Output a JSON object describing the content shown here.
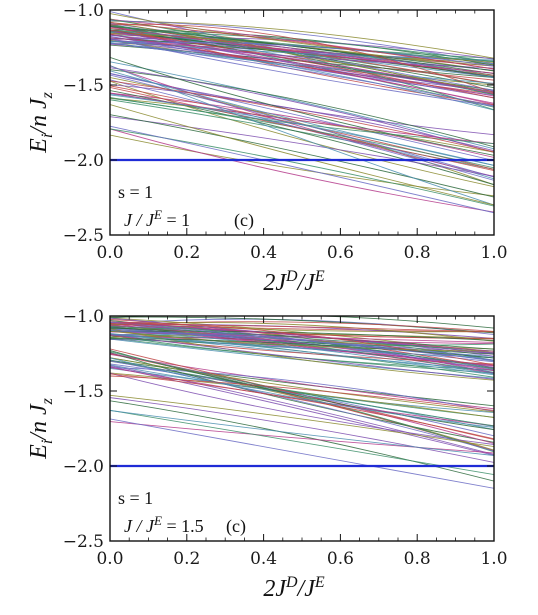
{
  "chart_data": [
    {
      "type": "line",
      "xlim": [
        0.0,
        1.0
      ],
      "ylim": [
        -2.5,
        -1.0
      ],
      "x_ticks": [
        "0.0",
        "0.2",
        "0.4",
        "0.6",
        "0.8",
        "1.0"
      ],
      "y_ticks": [
        "-1.0",
        "-1.5",
        "-2.0",
        "-2.5"
      ],
      "xlabel": {
        "base": "2J",
        "sup1": "D",
        "mid": "/J",
        "sup2": "E"
      },
      "ylabel": {
        "base": "E",
        "sub1": "i",
        "mid": "/n J",
        "sub2": "z"
      },
      "annotation": {
        "spin": "s = 1",
        "ratio_pre": "J / J",
        "ratio_sup": "E",
        "ratio_post": " = 1",
        "panel": "(c)"
      },
      "highlight_series": {
        "value": -2.0,
        "color": "#1f2bd6"
      },
      "band_series": [
        {
          "y0": -1.0,
          "y1": -1.39,
          "count": 60
        },
        {
          "y0": -1.3,
          "y1": -1.9,
          "count": 25
        },
        {
          "y0": -1.63,
          "y1": -2.1,
          "count": 6
        }
      ],
      "extra_series": [
        {
          "y0": -1.1,
          "y_mid": -1.05,
          "y1": -1.55
        },
        {
          "y0": -1.37,
          "y1": -2.3
        },
        {
          "y0": -1.63,
          "y1": -2.3
        }
      ],
      "palette": [
        "#b53c8c",
        "#3d8f6a",
        "#6b6cc4",
        "#c04848",
        "#4b8fb0",
        "#8a8a2e",
        "#7e4fb0",
        "#2f6b3e"
      ]
    },
    {
      "type": "line",
      "xlim": [
        0.0,
        1.0
      ],
      "ylim": [
        -2.5,
        -1.0
      ],
      "x_ticks": [
        "0.0",
        "0.2",
        "0.4",
        "0.6",
        "0.8",
        "1.0"
      ],
      "y_ticks": [
        "-1.0",
        "-1.5",
        "-2.0",
        "-2.5"
      ],
      "xlabel": {
        "base": "2J",
        "sup1": "D",
        "mid": "/J",
        "sup2": "E"
      },
      "ylabel": {
        "base": "E",
        "sub1": "i",
        "mid": "/n J",
        "sub2": "z"
      },
      "annotation": {
        "spin": "s = 1",
        "ratio_pre": "J / J",
        "ratio_sup": "E",
        "ratio_post": " = 1.5",
        "panel": "(c)"
      },
      "highlight_series": {
        "value": -2.0,
        "color": "#1f2bd6"
      },
      "band_series": [
        {
          "y0": -1.0,
          "y1": -1.15,
          "count": 60
        },
        {
          "y0": -1.15,
          "y1": -1.65,
          "count": 25
        },
        {
          "y0": -1.5,
          "y1": -1.92,
          "count": 6
        }
      ],
      "extra_series": [
        {
          "y0": -1.4,
          "y_mid": -1.45,
          "y1": -1.63
        },
        {
          "y0": -1.63,
          "y1": -1.93
        }
      ],
      "palette": [
        "#b53c8c",
        "#3d8f6a",
        "#6b6cc4",
        "#c04848",
        "#4b8fb0",
        "#8a8a2e",
        "#7e4fb0",
        "#2f6b3e"
      ]
    }
  ]
}
